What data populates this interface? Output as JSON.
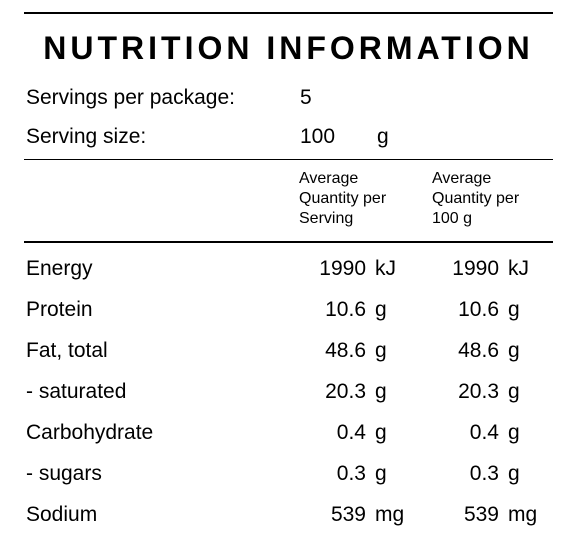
{
  "panel": {
    "title": "NUTRITION INFORMATION",
    "servings_per_package": {
      "label": "Servings per package:",
      "value": "5"
    },
    "serving_size": {
      "label": "Serving size:",
      "value": "100",
      "unit": "g"
    },
    "columns": {
      "per_serving": [
        "Average",
        "Quantity per",
        "Serving"
      ],
      "per_100g": [
        "Average",
        "Quantity per",
        "100 g"
      ]
    },
    "rows": [
      {
        "name": "Energy",
        "serving_value": "1990",
        "serving_unit": "kJ",
        "per100_value": "1990",
        "per100_unit": "kJ"
      },
      {
        "name": "Protein",
        "serving_value": "10.6",
        "serving_unit": "g",
        "per100_value": "10.6",
        "per100_unit": "g"
      },
      {
        "name": "Fat, total",
        "serving_value": "48.6",
        "serving_unit": "g",
        "per100_value": "48.6",
        "per100_unit": "g"
      },
      {
        "name": "- saturated",
        "serving_value": "20.3",
        "serving_unit": "g",
        "per100_value": "20.3",
        "per100_unit": "g"
      },
      {
        "name": "Carbohydrate",
        "serving_value": "0.4",
        "serving_unit": "g",
        "per100_value": "0.4",
        "per100_unit": "g"
      },
      {
        "name": "- sugars",
        "serving_value": "0.3",
        "serving_unit": "g",
        "per100_value": "0.3",
        "per100_unit": "g"
      },
      {
        "name": "Sodium",
        "serving_value": "539",
        "serving_unit": "mg",
        "per100_value": "539",
        "per100_unit": "mg"
      }
    ]
  }
}
